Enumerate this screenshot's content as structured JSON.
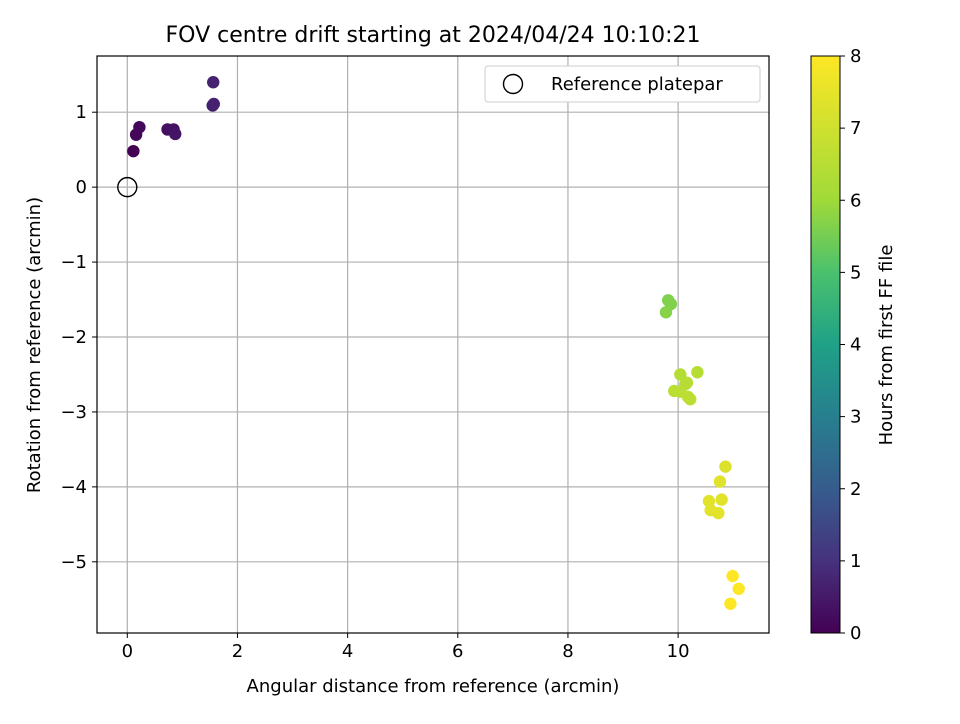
{
  "chart_data": {
    "type": "scatter",
    "title": "FOV centre drift starting at 2024/04/24 10:10:21",
    "xlabel": "Angular distance from reference (arcmin)",
    "ylabel": "Rotation from reference (arcmin)",
    "xlim": [
      -0.55,
      11.65
    ],
    "ylim": [
      -5.95,
      1.75
    ],
    "xticks": [
      0,
      2,
      4,
      6,
      8,
      10
    ],
    "xtick_labels": [
      "0",
      "2",
      "4",
      "6",
      "8",
      "10"
    ],
    "yticks": [
      1,
      0,
      -1,
      -2,
      -3,
      -4,
      -5
    ],
    "ytick_labels": [
      "1",
      "0",
      "−1",
      "−2",
      "−3",
      "−4",
      "−5"
    ],
    "grid": true,
    "legend": {
      "location": "upper right",
      "entries": [
        "Reference platepar"
      ]
    },
    "reference_point": {
      "x": 0,
      "y": 0
    },
    "colorbar": {
      "label": "Hours from first FF file",
      "colormap": "viridis",
      "range": [
        0,
        8
      ],
      "ticks": [
        0,
        1,
        2,
        3,
        4,
        5,
        6,
        7,
        8
      ],
      "tick_labels": [
        "0",
        "1",
        "2",
        "3",
        "4",
        "5",
        "6",
        "7",
        "8"
      ]
    },
    "series": [
      {
        "points": [
          {
            "x": 0.11,
            "y": 0.48,
            "hours": 0.0
          },
          {
            "x": 0.16,
            "y": 0.7,
            "hours": 0.1
          },
          {
            "x": 0.22,
            "y": 0.8,
            "hours": 0.15
          },
          {
            "x": 0.73,
            "y": 0.77,
            "hours": 0.3
          },
          {
            "x": 0.84,
            "y": 0.77,
            "hours": 0.35
          },
          {
            "x": 0.87,
            "y": 0.71,
            "hours": 0.4
          },
          {
            "x": 1.55,
            "y": 1.09,
            "hours": 0.6
          },
          {
            "x": 1.57,
            "y": 1.11,
            "hours": 0.65
          },
          {
            "x": 1.56,
            "y": 1.4,
            "hours": 0.7
          },
          {
            "x": 9.82,
            "y": -1.51,
            "hours": 5.6
          },
          {
            "x": 9.87,
            "y": -1.56,
            "hours": 5.65
          },
          {
            "x": 9.78,
            "y": -1.67,
            "hours": 5.7
          },
          {
            "x": 10.04,
            "y": -2.5,
            "hours": 6.4
          },
          {
            "x": 10.35,
            "y": -2.47,
            "hours": 6.45
          },
          {
            "x": 10.13,
            "y": -2.63,
            "hours": 6.5
          },
          {
            "x": 10.16,
            "y": -2.61,
            "hours": 6.5
          },
          {
            "x": 9.93,
            "y": -2.72,
            "hours": 6.55
          },
          {
            "x": 10.04,
            "y": -2.73,
            "hours": 6.55
          },
          {
            "x": 10.18,
            "y": -2.8,
            "hours": 6.6
          },
          {
            "x": 10.22,
            "y": -2.83,
            "hours": 6.6
          },
          {
            "x": 10.86,
            "y": -3.73,
            "hours": 7.3
          },
          {
            "x": 10.76,
            "y": -3.93,
            "hours": 7.35
          },
          {
            "x": 10.79,
            "y": -4.17,
            "hours": 7.4
          },
          {
            "x": 10.56,
            "y": -4.19,
            "hours": 7.4
          },
          {
            "x": 10.59,
            "y": -4.31,
            "hours": 7.45
          },
          {
            "x": 10.73,
            "y": -4.35,
            "hours": 7.45
          },
          {
            "x": 10.99,
            "y": -5.19,
            "hours": 8.0
          },
          {
            "x": 11.1,
            "y": -5.36,
            "hours": 8.0
          },
          {
            "x": 10.95,
            "y": -5.56,
            "hours": 8.0
          }
        ]
      }
    ]
  }
}
